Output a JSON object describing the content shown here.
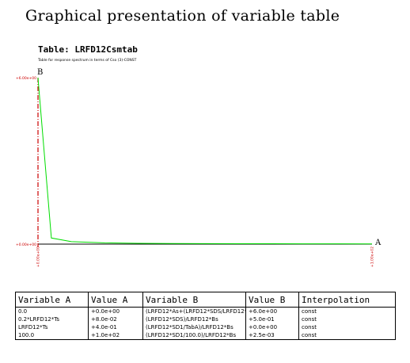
{
  "page": {
    "title": "Graphical presentation of variable table"
  },
  "chart_data": {
    "type": "line",
    "title": "Table: LRFD12Csmtab",
    "subtitle": "Table for response spectrum in terms of Cso (3)-CONST",
    "xlabel": "A",
    "ylabel": "B",
    "xlim": [
      0,
      100
    ],
    "ylim": [
      0,
      6
    ],
    "y_tick_labels": [
      "+0.00e+00",
      "+6.00e+00"
    ],
    "x_tick_labels": [
      "+0.00e+00",
      "+1.00e+02"
    ],
    "grid": false,
    "colors": {
      "series": "#00dd00",
      "axis": "#cc0000"
    },
    "x": [
      0,
      0.2,
      4,
      10,
      20,
      30,
      40,
      50,
      60,
      70,
      80,
      90,
      100
    ],
    "series": [
      {
        "values": [
          6.0,
          5.7,
          0.22,
          0.09,
          0.045,
          0.03,
          0.022,
          0.018,
          0.015,
          0.013,
          0.011,
          0.01,
          0.009
        ]
      }
    ]
  },
  "table": {
    "headers": [
      "Variable A",
      "Value A",
      "Variable B",
      "Value B",
      "Interpolation"
    ],
    "rows": [
      [
        "0.0",
        "+0.0e+00",
        "(LRFD12*As+(LRFD12*SDS/LRFD12*As-LRFD12*As)*(TabA/(0.2*LRFD12*Ts)))",
        "+6.0e+00",
        "const"
      ],
      [
        "0.2*LRFD12*Ts",
        "+8.0e-02",
        "(LRFD12*SDS)/LRFD12*Bs",
        "+5.0e-01",
        "const"
      ],
      [
        "LRFD12*Ts",
        "+4.0e-01",
        "(LRFD12*SD1/TabA)/LRFD12*Bs",
        "+0.0e+00",
        "const"
      ],
      [
        "100.0",
        "+1.0e+02",
        "(LRFD12*SD1/100.0)/LRFD12*Bs",
        "+2.5e-03",
        "const"
      ]
    ]
  }
}
